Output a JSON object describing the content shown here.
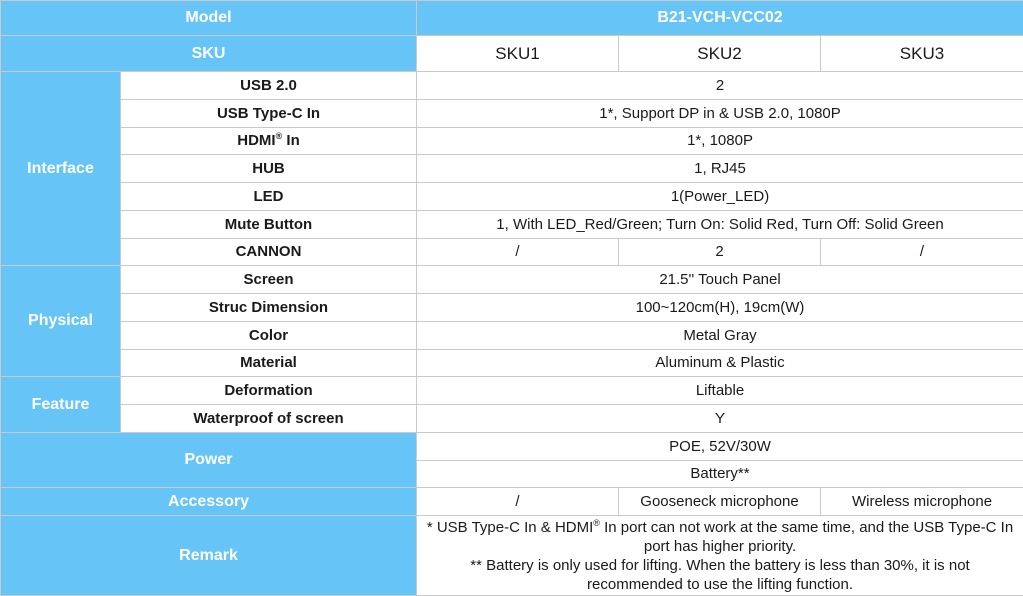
{
  "header": {
    "model_label": "Model",
    "model_value": "B21-VCH-VCC02",
    "sku_label": "SKU",
    "skus": [
      "SKU1",
      "SKU2",
      "SKU3"
    ]
  },
  "interface": {
    "category": "Interface",
    "rows": [
      {
        "label": "USB 2.0",
        "value": "2"
      },
      {
        "label": "USB Type-C In",
        "value": "1*, Support DP in & USB 2.0, 1080P"
      },
      {
        "label_main": "HDMI",
        "label_sup": "®",
        "label_tail": " In",
        "value": "1*, 1080P"
      },
      {
        "label": "HUB",
        "value": "1, RJ45"
      },
      {
        "label": "LED",
        "value": "1(Power_LED)"
      },
      {
        "label": "Mute Button",
        "value": "1, With LED_Red/Green; Turn On: Solid Red, Turn Off: Solid Green"
      },
      {
        "label": "CANNON",
        "values": [
          "/",
          "2",
          "/"
        ]
      }
    ]
  },
  "physical": {
    "category": "Physical",
    "rows": [
      {
        "label": "Screen",
        "value": "21.5'' Touch Panel"
      },
      {
        "label": "Struc Dimension",
        "value": "100~120cm(H), 19cm(W)"
      },
      {
        "label": "Color",
        "value": "Metal Gray"
      },
      {
        "label": "Material",
        "value": "Aluminum & Plastic"
      }
    ]
  },
  "feature": {
    "category": "Feature",
    "rows": [
      {
        "label": "Deformation",
        "value": "Liftable"
      },
      {
        "label": "Waterproof of screen",
        "value": "Y"
      }
    ]
  },
  "power": {
    "category": "Power",
    "values": [
      "POE, 52V/30W",
      "Battery**"
    ]
  },
  "accessory": {
    "category": "Accessory",
    "values": [
      "/",
      "Gooseneck microphone",
      "Wireless microphone"
    ]
  },
  "remark": {
    "category": "Remark",
    "line1_a": "* USB Type-C In & HDMI",
    "line1_sup": "®",
    "line1_b": " In port can not work at the same time, and the USB Type-C In port has higher priority.",
    "line2": "** Battery is only used for lifting. When the battery is less than 30%, it is not recommended to use the lifting function."
  },
  "colors": {
    "header_bg": "#66c4f6",
    "header_text": "#ffffff",
    "border": "#c9c9c9"
  }
}
